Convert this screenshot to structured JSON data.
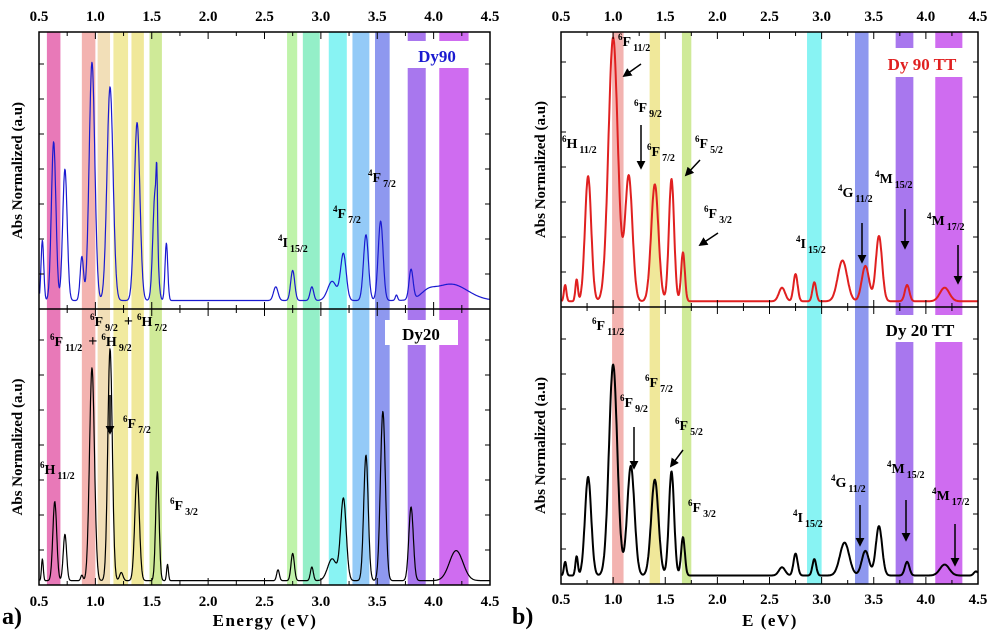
{
  "chart_data": [
    {
      "type": "line",
      "panel_label": "a)",
      "xlabel": "Energy (eV)",
      "ylabel": "Abs Normalized (a.u)",
      "xlim": [
        0.5,
        4.5
      ],
      "ylim": [
        0,
        1
      ],
      "xticks": [
        "0.5",
        "1.0",
        "1.5",
        "2.0",
        "2.5",
        "3.0",
        "3.5",
        "4.0",
        "4.5"
      ],
      "bands": [
        {
          "range": [
            0.57,
            0.69
          ],
          "color": "#e879b8"
        },
        {
          "range": [
            0.88,
            1.0
          ],
          "color": "#f3b3b0"
        },
        {
          "range": [
            1.02,
            1.13
          ],
          "color": "#f2dfb8"
        },
        {
          "range": [
            1.16,
            1.29
          ],
          "color": "#f1eaa0"
        },
        {
          "range": [
            1.32,
            1.43
          ],
          "color": "#f0e89a"
        },
        {
          "range": [
            1.48,
            1.59
          ],
          "color": "#cfea98"
        },
        {
          "range": [
            2.7,
            2.79
          ],
          "color": "#bff3aa"
        },
        {
          "range": [
            2.84,
            2.99
          ],
          "color": "#94efc8"
        },
        {
          "range": [
            3.07,
            3.23
          ],
          "color": "#88f3f3"
        },
        {
          "range": [
            3.28,
            3.43
          ],
          "color": "#94caf7"
        },
        {
          "range": [
            3.48,
            3.61
          ],
          "color": "#8e98ef"
        },
        {
          "range": [
            3.77,
            3.93
          ],
          "color": "#a877ee"
        },
        {
          "range": [
            4.05,
            4.31
          ],
          "color": "#cf6cf0"
        }
      ],
      "panels": [
        {
          "legend": "Dy90",
          "color": "#1a1ad0",
          "baseline": 0.02,
          "peaks": [
            [
              0.53,
              0.22,
              0.012
            ],
            [
              0.63,
              0.58,
              0.02
            ],
            [
              0.73,
              0.48,
              0.02
            ],
            [
              0.88,
              0.16,
              0.015
            ],
            [
              0.97,
              0.87,
              0.025
            ],
            [
              1.13,
              0.78,
              0.027
            ],
            [
              1.37,
              0.65,
              0.025
            ],
            [
              1.53,
              0.4,
              0.02
            ],
            [
              1.545,
              0.2,
              0.006
            ],
            [
              1.63,
              0.21,
              0.012
            ],
            [
              2.6,
              0.05,
              0.02
            ],
            [
              2.75,
              0.11,
              0.018
            ],
            [
              2.92,
              0.05,
              0.016
            ],
            [
              3.1,
              0.07,
              0.04
            ],
            [
              3.2,
              0.17,
              0.025
            ],
            [
              3.4,
              0.24,
              0.022
            ],
            [
              3.53,
              0.29,
              0.022
            ],
            [
              3.67,
              0.02,
              0.01
            ],
            [
              3.8,
              0.11,
              0.018
            ],
            [
              3.95,
              0.02,
              0.06
            ],
            [
              4.15,
              0.06,
              0.15
            ]
          ],
          "annotations": [
            {
              "terms": [
                [
                  "4",
                  "I",
                  "15/2"
                ]
              ]
            },
            {
              "terms": [
                [
                  "4",
                  "F",
                  "7/2"
                ]
              ]
            },
            {
              "terms": [
                [
                  "4",
                  "F",
                  "7/2"
                ]
              ]
            }
          ]
        },
        {
          "legend": "Dy20",
          "color": "#000000",
          "baseline": 0.005,
          "peaks": [
            [
              0.53,
              0.08,
              0.008
            ],
            [
              0.64,
              0.29,
              0.017
            ],
            [
              0.73,
              0.17,
              0.015
            ],
            [
              0.88,
              0.02,
              0.01
            ],
            [
              0.97,
              0.78,
              0.022
            ],
            [
              1.13,
              0.85,
              0.02
            ],
            [
              1.23,
              0.03,
              0.015
            ],
            [
              1.37,
              0.39,
              0.02
            ],
            [
              1.55,
              0.4,
              0.015
            ],
            [
              1.64,
              0.06,
              0.008
            ],
            [
              2.62,
              0.04,
              0.012
            ],
            [
              2.75,
              0.1,
              0.015
            ],
            [
              2.92,
              0.05,
              0.013
            ],
            [
              3.1,
              0.08,
              0.04
            ],
            [
              3.2,
              0.3,
              0.025
            ],
            [
              3.4,
              0.46,
              0.02
            ],
            [
              3.55,
              0.62,
              0.022
            ],
            [
              3.8,
              0.27,
              0.02
            ],
            [
              4.2,
              0.11,
              0.06
            ]
          ],
          "annotations": [
            {
              "terms": [
                [
                  "6",
                  "F",
                  "9/2"
                ],
                [
                  "6",
                  "H",
                  "7/2"
                ]
              ]
            },
            {
              "terms": [
                [
                  "6",
                  "F",
                  "11/2"
                ],
                [
                  "6",
                  "H",
                  "9/2"
                ]
              ]
            },
            {
              "terms": [
                [
                  "6",
                  "H",
                  "11/2"
                ]
              ]
            },
            {
              "terms": [
                [
                  "6",
                  "F",
                  "7/2"
                ]
              ]
            },
            {
              "terms": [
                [
                  "6",
                  "F",
                  "3/2"
                ]
              ]
            }
          ]
        }
      ]
    },
    {
      "type": "line",
      "panel_label": "b)",
      "xlabel": "E (eV)",
      "ylabel": "Abs Normalized (a.u)",
      "xlim": [
        0.5,
        4.5
      ],
      "ylim": [
        0,
        1
      ],
      "xticks": [
        "0.5",
        "1.0",
        "1.5",
        "2.0",
        "2.5",
        "3.0",
        "3.5",
        "4.0",
        "4.5"
      ],
      "bands": [
        {
          "range": [
            0.99,
            1.1
          ],
          "color": "#f3b3b0"
        },
        {
          "range": [
            1.35,
            1.45
          ],
          "color": "#f0e89a"
        },
        {
          "range": [
            1.66,
            1.75
          ],
          "color": "#cfea98"
        },
        {
          "range": [
            2.86,
            3.0
          ],
          "color": "#88f3f3"
        },
        {
          "range": [
            3.32,
            3.45
          ],
          "color": "#8e98ef"
        },
        {
          "range": [
            3.71,
            3.88
          ],
          "color": "#a877ee"
        },
        {
          "range": [
            4.09,
            4.35
          ],
          "color": "#cf6cf0"
        }
      ],
      "panels": [
        {
          "legend": "Dy 90 TT",
          "color": "#e02020",
          "baseline": 0.01,
          "peaks": [
            [
              0.54,
              0.06,
              0.012
            ],
            [
              0.65,
              0.08,
              0.012
            ],
            [
              0.76,
              0.46,
              0.03
            ],
            [
              1.0,
              0.97,
              0.045
            ],
            [
              1.15,
              0.46,
              0.035
            ],
            [
              1.4,
              0.43,
              0.035
            ],
            [
              1.56,
              0.45,
              0.025
            ],
            [
              1.67,
              0.18,
              0.018
            ],
            [
              2.62,
              0.05,
              0.03
            ],
            [
              2.75,
              0.1,
              0.02
            ],
            [
              2.93,
              0.07,
              0.018
            ],
            [
              3.2,
              0.15,
              0.045
            ],
            [
              3.42,
              0.13,
              0.035
            ],
            [
              3.55,
              0.24,
              0.03
            ],
            [
              3.82,
              0.06,
              0.022
            ],
            [
              4.18,
              0.05,
              0.045
            ]
          ],
          "annotations": [
            {
              "terms": [
                [
                  "6",
                  "F",
                  "11/2"
                ]
              ]
            },
            {
              "terms": [
                [
                  "6",
                  "H",
                  "11/2"
                ]
              ]
            },
            {
              "terms": [
                [
                  "6",
                  "F",
                  "9/2"
                ]
              ]
            },
            {
              "terms": [
                [
                  "6",
                  "F",
                  "7/2"
                ]
              ]
            },
            {
              "terms": [
                [
                  "6",
                  "F",
                  "5/2"
                ]
              ]
            },
            {
              "terms": [
                [
                  "6",
                  "F",
                  "3/2"
                ]
              ]
            },
            {
              "terms": [
                [
                  "4",
                  "I",
                  "15/2"
                ]
              ]
            },
            {
              "terms": [
                [
                  "4",
                  "G",
                  "11/2"
                ]
              ]
            },
            {
              "terms": [
                [
                  "4",
                  "M",
                  "15/2"
                ]
              ]
            },
            {
              "terms": [
                [
                  "4",
                  "M",
                  "17/2"
                ]
              ]
            }
          ]
        },
        {
          "legend": "Dy 20 TT",
          "color": "#000000",
          "baseline": 0.02,
          "peaks": [
            [
              0.54,
              0.05,
              0.012
            ],
            [
              0.65,
              0.07,
              0.012
            ],
            [
              0.76,
              0.36,
              0.03
            ],
            [
              1.0,
              0.77,
              0.04
            ],
            [
              1.17,
              0.4,
              0.035
            ],
            [
              1.4,
              0.35,
              0.035
            ],
            [
              1.56,
              0.38,
              0.025
            ],
            [
              1.67,
              0.14,
              0.018
            ],
            [
              2.62,
              0.03,
              0.03
            ],
            [
              2.75,
              0.08,
              0.02
            ],
            [
              2.93,
              0.06,
              0.018
            ],
            [
              3.22,
              0.12,
              0.045
            ],
            [
              3.42,
              0.09,
              0.035
            ],
            [
              3.55,
              0.18,
              0.03
            ],
            [
              3.82,
              0.05,
              0.022
            ],
            [
              4.18,
              0.04,
              0.045
            ],
            [
              4.48,
              0.015,
              0.02
            ]
          ],
          "annotations": [
            {
              "terms": [
                [
                  "6",
                  "F",
                  "11/2"
                ]
              ]
            },
            {
              "terms": [
                [
                  "6",
                  "F",
                  "9/2"
                ]
              ]
            },
            {
              "terms": [
                [
                  "6",
                  "F",
                  "7/2"
                ]
              ]
            },
            {
              "terms": [
                [
                  "6",
                  "F",
                  "5/2"
                ]
              ]
            },
            {
              "terms": [
                [
                  "6",
                  "F",
                  "3/2"
                ]
              ]
            },
            {
              "terms": [
                [
                  "4",
                  "I",
                  "15/2"
                ]
              ]
            },
            {
              "terms": [
                [
                  "4",
                  "G",
                  "11/2"
                ]
              ]
            },
            {
              "terms": [
                [
                  "4",
                  "M",
                  "15/2"
                ]
              ]
            },
            {
              "terms": [
                [
                  "4",
                  "M",
                  "17/2"
                ]
              ]
            }
          ]
        }
      ]
    }
  ]
}
